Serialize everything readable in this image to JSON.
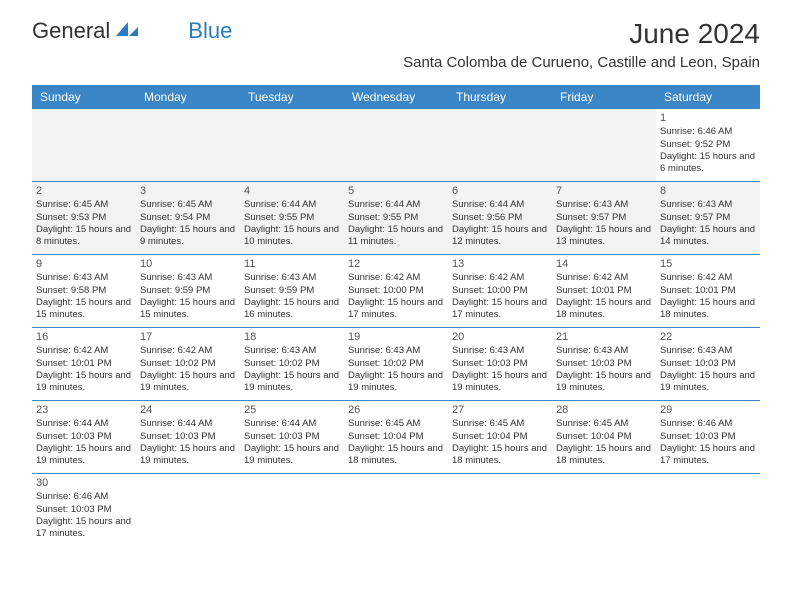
{
  "logo": {
    "general": "General",
    "blue": "Blue"
  },
  "title": "June 2024",
  "location": "Santa Colomba de Curueno, Castille and Leon, Spain",
  "colors": {
    "header_bg": "#3b86c6",
    "header_text": "#ffffff",
    "cell_text": "#333333",
    "divider": "#3b86c6",
    "shade": "#f3f3f3",
    "logo_blue": "#2b7bbf"
  },
  "day_names": [
    "Sunday",
    "Monday",
    "Tuesday",
    "Wednesday",
    "Thursday",
    "Friday",
    "Saturday"
  ],
  "weeks": [
    [
      {
        "day": "",
        "sunrise": "",
        "sunset": "",
        "daylight": "",
        "empty": true
      },
      {
        "day": "",
        "sunrise": "",
        "sunset": "",
        "daylight": "",
        "empty": true
      },
      {
        "day": "",
        "sunrise": "",
        "sunset": "",
        "daylight": "",
        "empty": true
      },
      {
        "day": "",
        "sunrise": "",
        "sunset": "",
        "daylight": "",
        "empty": true
      },
      {
        "day": "",
        "sunrise": "",
        "sunset": "",
        "daylight": "",
        "empty": true
      },
      {
        "day": "",
        "sunrise": "",
        "sunset": "",
        "daylight": "",
        "empty": true
      },
      {
        "day": "1",
        "sunrise": "Sunrise: 6:46 AM",
        "sunset": "Sunset: 9:52 PM",
        "daylight": "Daylight: 15 hours and 6 minutes."
      }
    ],
    [
      {
        "day": "2",
        "sunrise": "Sunrise: 6:45 AM",
        "sunset": "Sunset: 9:53 PM",
        "daylight": "Daylight: 15 hours and 8 minutes.",
        "shaded": true
      },
      {
        "day": "3",
        "sunrise": "Sunrise: 6:45 AM",
        "sunset": "Sunset: 9:54 PM",
        "daylight": "Daylight: 15 hours and 9 minutes.",
        "shaded": true
      },
      {
        "day": "4",
        "sunrise": "Sunrise: 6:44 AM",
        "sunset": "Sunset: 9:55 PM",
        "daylight": "Daylight: 15 hours and 10 minutes.",
        "shaded": true
      },
      {
        "day": "5",
        "sunrise": "Sunrise: 6:44 AM",
        "sunset": "Sunset: 9:55 PM",
        "daylight": "Daylight: 15 hours and 11 minutes.",
        "shaded": true
      },
      {
        "day": "6",
        "sunrise": "Sunrise: 6:44 AM",
        "sunset": "Sunset: 9:56 PM",
        "daylight": "Daylight: 15 hours and 12 minutes.",
        "shaded": true
      },
      {
        "day": "7",
        "sunrise": "Sunrise: 6:43 AM",
        "sunset": "Sunset: 9:57 PM",
        "daylight": "Daylight: 15 hours and 13 minutes.",
        "shaded": true
      },
      {
        "day": "8",
        "sunrise": "Sunrise: 6:43 AM",
        "sunset": "Sunset: 9:57 PM",
        "daylight": "Daylight: 15 hours and 14 minutes.",
        "shaded": true
      }
    ],
    [
      {
        "day": "9",
        "sunrise": "Sunrise: 6:43 AM",
        "sunset": "Sunset: 9:58 PM",
        "daylight": "Daylight: 15 hours and 15 minutes."
      },
      {
        "day": "10",
        "sunrise": "Sunrise: 6:43 AM",
        "sunset": "Sunset: 9:59 PM",
        "daylight": "Daylight: 15 hours and 15 minutes."
      },
      {
        "day": "11",
        "sunrise": "Sunrise: 6:43 AM",
        "sunset": "Sunset: 9:59 PM",
        "daylight": "Daylight: 15 hours and 16 minutes."
      },
      {
        "day": "12",
        "sunrise": "Sunrise: 6:42 AM",
        "sunset": "Sunset: 10:00 PM",
        "daylight": "Daylight: 15 hours and 17 minutes."
      },
      {
        "day": "13",
        "sunrise": "Sunrise: 6:42 AM",
        "sunset": "Sunset: 10:00 PM",
        "daylight": "Daylight: 15 hours and 17 minutes."
      },
      {
        "day": "14",
        "sunrise": "Sunrise: 6:42 AM",
        "sunset": "Sunset: 10:01 PM",
        "daylight": "Daylight: 15 hours and 18 minutes."
      },
      {
        "day": "15",
        "sunrise": "Sunrise: 6:42 AM",
        "sunset": "Sunset: 10:01 PM",
        "daylight": "Daylight: 15 hours and 18 minutes."
      }
    ],
    [
      {
        "day": "16",
        "sunrise": "Sunrise: 6:42 AM",
        "sunset": "Sunset: 10:01 PM",
        "daylight": "Daylight: 15 hours and 19 minutes."
      },
      {
        "day": "17",
        "sunrise": "Sunrise: 6:42 AM",
        "sunset": "Sunset: 10:02 PM",
        "daylight": "Daylight: 15 hours and 19 minutes."
      },
      {
        "day": "18",
        "sunrise": "Sunrise: 6:43 AM",
        "sunset": "Sunset: 10:02 PM",
        "daylight": "Daylight: 15 hours and 19 minutes."
      },
      {
        "day": "19",
        "sunrise": "Sunrise: 6:43 AM",
        "sunset": "Sunset: 10:02 PM",
        "daylight": "Daylight: 15 hours and 19 minutes."
      },
      {
        "day": "20",
        "sunrise": "Sunrise: 6:43 AM",
        "sunset": "Sunset: 10:03 PM",
        "daylight": "Daylight: 15 hours and 19 minutes."
      },
      {
        "day": "21",
        "sunrise": "Sunrise: 6:43 AM",
        "sunset": "Sunset: 10:03 PM",
        "daylight": "Daylight: 15 hours and 19 minutes."
      },
      {
        "day": "22",
        "sunrise": "Sunrise: 6:43 AM",
        "sunset": "Sunset: 10:03 PM",
        "daylight": "Daylight: 15 hours and 19 minutes."
      }
    ],
    [
      {
        "day": "23",
        "sunrise": "Sunrise: 6:44 AM",
        "sunset": "Sunset: 10:03 PM",
        "daylight": "Daylight: 15 hours and 19 minutes."
      },
      {
        "day": "24",
        "sunrise": "Sunrise: 6:44 AM",
        "sunset": "Sunset: 10:03 PM",
        "daylight": "Daylight: 15 hours and 19 minutes."
      },
      {
        "day": "25",
        "sunrise": "Sunrise: 6:44 AM",
        "sunset": "Sunset: 10:03 PM",
        "daylight": "Daylight: 15 hours and 19 minutes."
      },
      {
        "day": "26",
        "sunrise": "Sunrise: 6:45 AM",
        "sunset": "Sunset: 10:04 PM",
        "daylight": "Daylight: 15 hours and 18 minutes."
      },
      {
        "day": "27",
        "sunrise": "Sunrise: 6:45 AM",
        "sunset": "Sunset: 10:04 PM",
        "daylight": "Daylight: 15 hours and 18 minutes."
      },
      {
        "day": "28",
        "sunrise": "Sunrise: 6:45 AM",
        "sunset": "Sunset: 10:04 PM",
        "daylight": "Daylight: 15 hours and 18 minutes."
      },
      {
        "day": "29",
        "sunrise": "Sunrise: 6:46 AM",
        "sunset": "Sunset: 10:03 PM",
        "daylight": "Daylight: 15 hours and 17 minutes."
      }
    ],
    [
      {
        "day": "30",
        "sunrise": "Sunrise: 6:46 AM",
        "sunset": "Sunset: 10:03 PM",
        "daylight": "Daylight: 15 hours and 17 minutes."
      },
      {
        "day": "",
        "sunrise": "",
        "sunset": "",
        "daylight": "",
        "empty": true,
        "trailing": true
      },
      {
        "day": "",
        "sunrise": "",
        "sunset": "",
        "daylight": "",
        "empty": true,
        "trailing": true
      },
      {
        "day": "",
        "sunrise": "",
        "sunset": "",
        "daylight": "",
        "empty": true,
        "trailing": true
      },
      {
        "day": "",
        "sunrise": "",
        "sunset": "",
        "daylight": "",
        "empty": true,
        "trailing": true
      },
      {
        "day": "",
        "sunrise": "",
        "sunset": "",
        "daylight": "",
        "empty": true,
        "trailing": true
      },
      {
        "day": "",
        "sunrise": "",
        "sunset": "",
        "daylight": "",
        "empty": true,
        "trailing": true
      }
    ]
  ]
}
